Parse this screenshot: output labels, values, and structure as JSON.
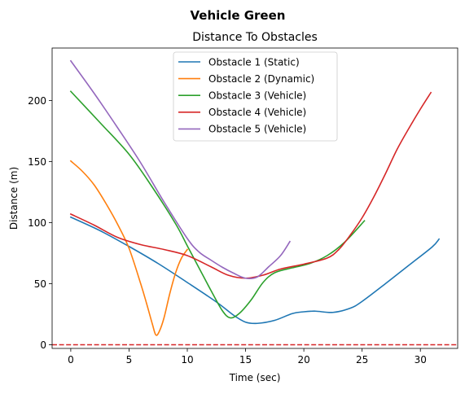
{
  "figure": {
    "suptitle": "Vehicle Green"
  },
  "chart_data": {
    "type": "line",
    "title": "Distance To Obstacles",
    "xlabel": "Time (sec)",
    "ylabel": "Distance (m)",
    "xlim": [
      -1.6,
      33.2
    ],
    "ylim": [
      -3,
      243
    ],
    "xticks": [
      0,
      5,
      10,
      15,
      20,
      25,
      30
    ],
    "yticks": [
      0,
      50,
      100,
      150,
      200
    ],
    "grid": false,
    "legend_position": "upper center",
    "reference_line": {
      "y": 0,
      "color": "#d62728",
      "style": "dashed"
    },
    "series": [
      {
        "name": "Obstacle 1 (Static)",
        "color": "#1f77b4",
        "points": [
          [
            0,
            104.5
          ],
          [
            2.5,
            93.5
          ],
          [
            5,
            80.5
          ],
          [
            7.5,
            66.5
          ],
          [
            10,
            51
          ],
          [
            12.5,
            35
          ],
          [
            14,
            24
          ],
          [
            15,
            18.5
          ],
          [
            16,
            17.5
          ],
          [
            17.5,
            20
          ],
          [
            19,
            25.5
          ],
          [
            20,
            27
          ],
          [
            21,
            27.5
          ],
          [
            22.5,
            26.5
          ],
          [
            24,
            30
          ],
          [
            25,
            35.5
          ],
          [
            27,
            50
          ],
          [
            29,
            65
          ],
          [
            31,
            80
          ],
          [
            31.6,
            86.5
          ]
        ]
      },
      {
        "name": "Obstacle 2 (Dynamic)",
        "color": "#ff7f0e",
        "points": [
          [
            0,
            150.5
          ],
          [
            1,
            142
          ],
          [
            2,
            131
          ],
          [
            3,
            116
          ],
          [
            4,
            99
          ],
          [
            5,
            79
          ],
          [
            6,
            50
          ],
          [
            6.5,
            34
          ],
          [
            7,
            17
          ],
          [
            7.3,
            8
          ],
          [
            7.6,
            11
          ],
          [
            8,
            22
          ],
          [
            8.5,
            42
          ],
          [
            9,
            59
          ],
          [
            9.5,
            71
          ],
          [
            10,
            78
          ]
        ]
      },
      {
        "name": "Obstacle 3 (Vehicle)",
        "color": "#2ca02c",
        "points": [
          [
            0,
            207.5
          ],
          [
            2.5,
            182
          ],
          [
            5,
            156
          ],
          [
            7,
            129
          ],
          [
            9,
            99
          ],
          [
            10,
            81
          ],
          [
            11,
            63
          ],
          [
            12,
            45
          ],
          [
            13,
            28
          ],
          [
            13.7,
            22
          ],
          [
            14.5,
            26
          ],
          [
            15.5,
            37
          ],
          [
            16.5,
            51
          ],
          [
            17.5,
            59
          ],
          [
            19,
            63
          ],
          [
            20.5,
            66.5
          ],
          [
            22,
            73
          ],
          [
            23.5,
            84
          ],
          [
            25.2,
            101.5
          ]
        ]
      },
      {
        "name": "Obstacle 4 (Vehicle)",
        "color": "#d62728",
        "points": [
          [
            0,
            107
          ],
          [
            2,
            98
          ],
          [
            4,
            88
          ],
          [
            6,
            82
          ],
          [
            8,
            78
          ],
          [
            10,
            73
          ],
          [
            12,
            64
          ],
          [
            13.5,
            57
          ],
          [
            15,
            54.5
          ],
          [
            16.5,
            57
          ],
          [
            18,
            62
          ],
          [
            20,
            66
          ],
          [
            22,
            71
          ],
          [
            23,
            78
          ],
          [
            24,
            90
          ],
          [
            25,
            104
          ],
          [
            26,
            121
          ],
          [
            27,
            140
          ],
          [
            28,
            160
          ],
          [
            29,
            177
          ],
          [
            30,
            193
          ],
          [
            30.9,
            206.5
          ]
        ]
      },
      {
        "name": "Obstacle 5 (Vehicle)",
        "color": "#9467bd",
        "points": [
          [
            0,
            232.5
          ],
          [
            2,
            206
          ],
          [
            4,
            178
          ],
          [
            6,
            149
          ],
          [
            8,
            117
          ],
          [
            10,
            87
          ],
          [
            11,
            76
          ],
          [
            12,
            69.5
          ],
          [
            13,
            63.5
          ],
          [
            14,
            58.5
          ],
          [
            15,
            54.5
          ],
          [
            16,
            55.5
          ],
          [
            17,
            64
          ],
          [
            18,
            73
          ],
          [
            18.8,
            84.5
          ]
        ]
      }
    ]
  }
}
